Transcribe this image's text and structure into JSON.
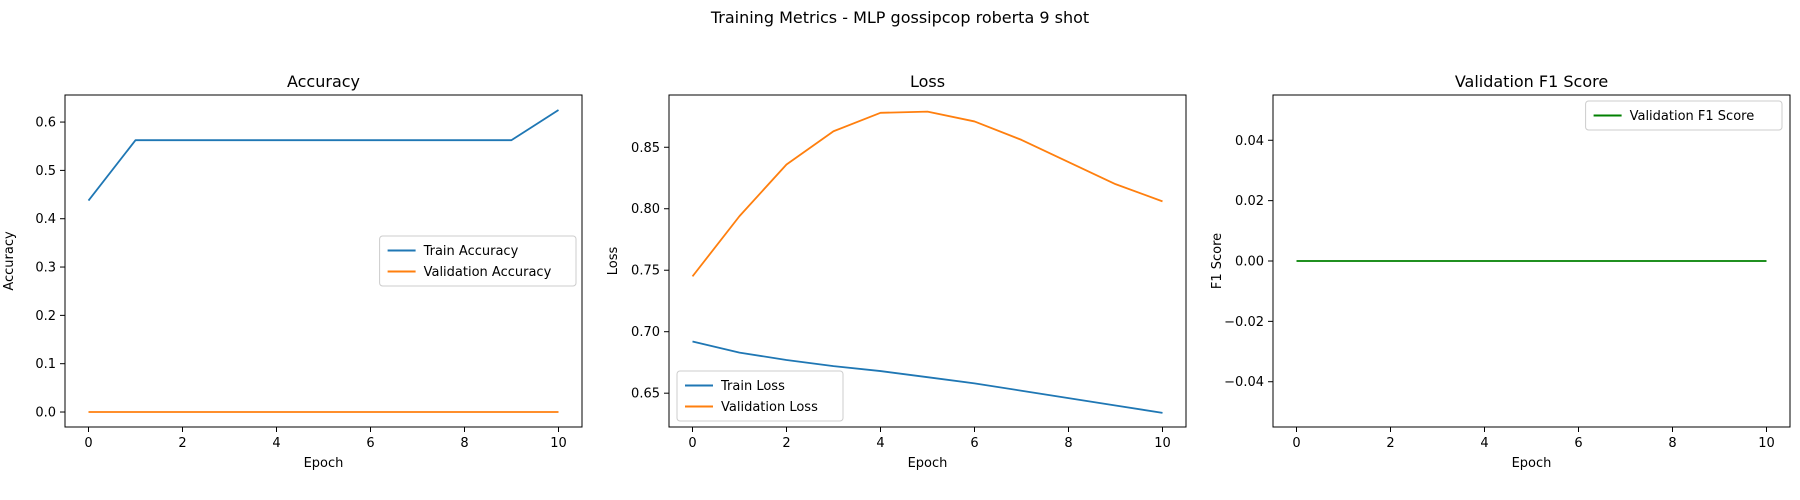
{
  "figure": {
    "suptitle": "Training Metrics - MLP gossipcop roberta 9 shot"
  },
  "chart_data": [
    {
      "type": "line",
      "title": "Accuracy",
      "xlabel": "Epoch",
      "ylabel": "Accuracy",
      "x": [
        0,
        1,
        2,
        3,
        4,
        5,
        6,
        7,
        8,
        9,
        10
      ],
      "xlim": [
        -0.5,
        10.5
      ],
      "ylim": [
        -0.031,
        0.656
      ],
      "xticks": [
        0,
        2,
        4,
        6,
        8,
        10
      ],
      "yticks": [
        0.0,
        0.1,
        0.2,
        0.3,
        0.4,
        0.5,
        0.6
      ],
      "ytick_labels": [
        "0.0",
        "0.1",
        "0.2",
        "0.3",
        "0.4",
        "0.5",
        "0.6"
      ],
      "legend_position": "center-right",
      "series": [
        {
          "name": "Train Accuracy",
          "color": "#1f77b4",
          "values": [
            0.4375,
            0.5625,
            0.5625,
            0.5625,
            0.5625,
            0.5625,
            0.5625,
            0.5625,
            0.5625,
            0.5625,
            0.625
          ]
        },
        {
          "name": "Validation Accuracy",
          "color": "#ff7f0e",
          "values": [
            0,
            0,
            0,
            0,
            0,
            0,
            0,
            0,
            0,
            0,
            0
          ]
        }
      ]
    },
    {
      "type": "line",
      "title": "Loss",
      "xlabel": "Epoch",
      "ylabel": "Loss",
      "x": [
        0,
        1,
        2,
        3,
        4,
        5,
        6,
        7,
        8,
        9,
        10
      ],
      "xlim": [
        -0.5,
        10.5
      ],
      "ylim": [
        0.6225,
        0.8925
      ],
      "xticks": [
        0,
        2,
        4,
        6,
        8,
        10
      ],
      "yticks": [
        0.65,
        0.7,
        0.75,
        0.8,
        0.85
      ],
      "ytick_labels": [
        "0.65",
        "0.70",
        "0.75",
        "0.80",
        "0.85"
      ],
      "legend_position": "bottom-left",
      "series": [
        {
          "name": "Train Loss",
          "color": "#1f77b4",
          "values": [
            0.692,
            0.683,
            0.677,
            0.672,
            0.668,
            0.663,
            0.658,
            0.652,
            0.646,
            0.64,
            0.634
          ]
        },
        {
          "name": "Validation Loss",
          "color": "#ff7f0e",
          "values": [
            0.745,
            0.794,
            0.836,
            0.863,
            0.878,
            0.879,
            0.871,
            0.856,
            0.838,
            0.82,
            0.806
          ]
        }
      ]
    },
    {
      "type": "line",
      "title": "Validation F1 Score",
      "xlabel": "Epoch",
      "ylabel": "F1 Score",
      "x": [
        0,
        1,
        2,
        3,
        4,
        5,
        6,
        7,
        8,
        9,
        10
      ],
      "xlim": [
        -0.5,
        10.5
      ],
      "ylim": [
        -0.055,
        0.055
      ],
      "xticks": [
        0,
        2,
        4,
        6,
        8,
        10
      ],
      "yticks": [
        -0.04,
        -0.02,
        0.0,
        0.02,
        0.04
      ],
      "ytick_labels": [
        "−0.04",
        "−0.02",
        "0.00",
        "0.02",
        "0.04"
      ],
      "legend_position": "top-right",
      "series": [
        {
          "name": "Validation F1 Score",
          "color": "#008000",
          "values": [
            0,
            0,
            0,
            0,
            0,
            0,
            0,
            0,
            0,
            0,
            0
          ]
        }
      ]
    }
  ]
}
